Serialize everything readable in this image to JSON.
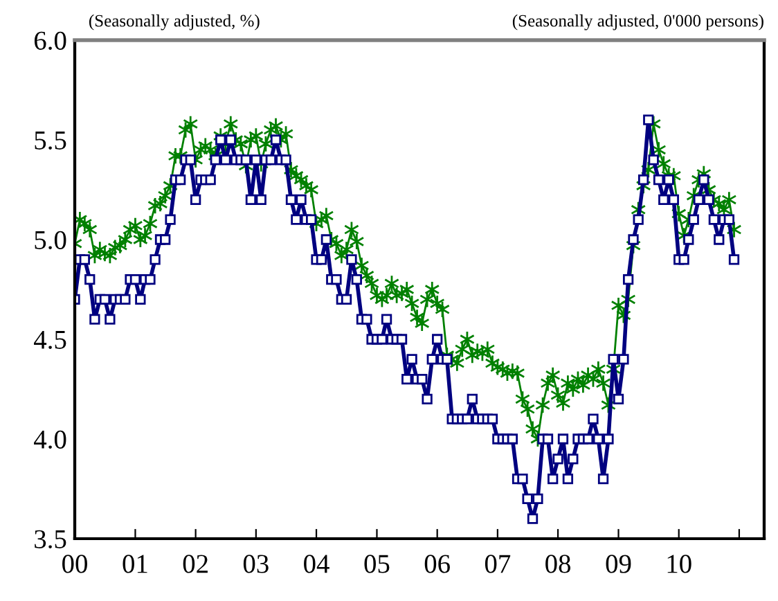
{
  "chart_data": {
    "type": "line",
    "ylabel": "(Seasonally adjusted, %)",
    "y2label": "(Seasonally adjusted, 0'000 persons)",
    "x": [
      "2000-01",
      "2000-02",
      "2000-03",
      "2000-04",
      "2000-05",
      "2000-06",
      "2000-07",
      "2000-08",
      "2000-09",
      "2000-10",
      "2000-11",
      "2000-12",
      "2001-01",
      "2001-02",
      "2001-03",
      "2001-04",
      "2001-05",
      "2001-06",
      "2001-07",
      "2001-08",
      "2001-09",
      "2001-10",
      "2001-11",
      "2001-12",
      "2002-01",
      "2002-02",
      "2002-03",
      "2002-04",
      "2002-05",
      "2002-06",
      "2002-07",
      "2002-08",
      "2002-09",
      "2002-10",
      "2002-11",
      "2002-12",
      "2003-01",
      "2003-02",
      "2003-03",
      "2003-04",
      "2003-05",
      "2003-06",
      "2003-07",
      "2003-08",
      "2003-09",
      "2003-10",
      "2003-11",
      "2003-12",
      "2004-01",
      "2004-02",
      "2004-03",
      "2004-04",
      "2004-05",
      "2004-06",
      "2004-07",
      "2004-08",
      "2004-09",
      "2004-10",
      "2004-11",
      "2004-12",
      "2005-01",
      "2005-02",
      "2005-03",
      "2005-04",
      "2005-05",
      "2005-06",
      "2005-07",
      "2005-08",
      "2005-09",
      "2005-10",
      "2005-11",
      "2005-12",
      "2006-01",
      "2006-02",
      "2006-03",
      "2006-04",
      "2006-05",
      "2006-06",
      "2006-07",
      "2006-08",
      "2006-09",
      "2006-10",
      "2006-11",
      "2006-12",
      "2007-01",
      "2007-02",
      "2007-03",
      "2007-04",
      "2007-05",
      "2007-06",
      "2007-07",
      "2007-08",
      "2007-09",
      "2007-10",
      "2007-11",
      "2007-12",
      "2008-01",
      "2008-02",
      "2008-03",
      "2008-04",
      "2008-05",
      "2008-06",
      "2008-07",
      "2008-08",
      "2008-09",
      "2008-10",
      "2008-11",
      "2008-12",
      "2009-01",
      "2009-02",
      "2009-03",
      "2009-04",
      "2009-05",
      "2009-06",
      "2009-07",
      "2009-08",
      "2009-09",
      "2009-10",
      "2009-11",
      "2009-12",
      "2010-01",
      "2010-02",
      "2010-03",
      "2010-04",
      "2010-05",
      "2010-06",
      "2010-07",
      "2010-08",
      "2010-09",
      "2010-10",
      "2010-11",
      "2010-12"
    ],
    "series": [
      {
        "color": "#008000",
        "marker": "cross",
        "values": [
          4.98,
          5.1,
          5.08,
          5.05,
          4.92,
          4.95,
          4.93,
          4.92,
          4.96,
          4.97,
          5.0,
          5.05,
          5.07,
          5.0,
          5.02,
          5.08,
          5.17,
          5.18,
          5.22,
          5.27,
          5.42,
          5.42,
          5.55,
          5.58,
          5.4,
          5.45,
          5.47,
          5.45,
          5.42,
          5.52,
          5.48,
          5.58,
          5.5,
          5.48,
          5.37,
          5.5,
          5.52,
          5.38,
          5.48,
          5.55,
          5.57,
          5.5,
          5.53,
          5.35,
          5.32,
          5.3,
          5.27,
          5.25,
          5.08,
          5.1,
          5.12,
          5.0,
          4.98,
          4.92,
          4.95,
          5.05,
          4.99,
          4.87,
          4.82,
          4.78,
          4.72,
          4.7,
          4.72,
          4.78,
          4.72,
          4.73,
          4.75,
          4.68,
          4.61,
          4.58,
          4.7,
          4.75,
          4.68,
          4.65,
          4.42,
          4.4,
          4.38,
          4.45,
          4.5,
          4.42,
          4.44,
          4.43,
          4.45,
          4.38,
          4.36,
          4.35,
          4.33,
          4.34,
          4.33,
          4.2,
          4.15,
          4.05,
          4.0,
          4.17,
          4.28,
          4.32,
          4.22,
          4.18,
          4.28,
          4.25,
          4.3,
          4.27,
          4.32,
          4.3,
          4.35,
          4.28,
          4.17,
          4.35,
          4.67,
          4.62,
          4.7,
          4.97,
          5.15,
          5.27,
          5.35,
          5.58,
          5.45,
          5.38,
          5.32,
          5.32,
          5.13,
          5.02,
          5.1,
          5.22,
          5.3,
          5.33,
          5.25,
          5.2,
          5.18,
          5.15,
          5.2,
          5.05
        ]
      },
      {
        "color": "#000080",
        "marker": "square",
        "values": [
          4.7,
          4.9,
          4.9,
          4.8,
          4.6,
          4.7,
          4.7,
          4.6,
          4.7,
          4.7,
          4.7,
          4.8,
          4.8,
          4.7,
          4.8,
          4.8,
          4.9,
          5.0,
          5.0,
          5.1,
          5.3,
          5.3,
          5.4,
          5.4,
          5.2,
          5.3,
          5.3,
          5.3,
          5.4,
          5.5,
          5.4,
          5.5,
          5.4,
          5.4,
          5.4,
          5.2,
          5.4,
          5.2,
          5.4,
          5.4,
          5.5,
          5.4,
          5.4,
          5.2,
          5.1,
          5.2,
          5.1,
          5.1,
          4.9,
          4.9,
          5.0,
          4.8,
          4.8,
          4.7,
          4.7,
          4.9,
          4.8,
          4.6,
          4.6,
          4.5,
          4.5,
          4.5,
          4.6,
          4.5,
          4.5,
          4.5,
          4.3,
          4.4,
          4.3,
          4.3,
          4.2,
          4.4,
          4.5,
          4.4,
          4.4,
          4.1,
          4.1,
          4.1,
          4.1,
          4.2,
          4.1,
          4.1,
          4.1,
          4.1,
          4.0,
          4.0,
          4.0,
          4.0,
          3.8,
          3.8,
          3.7,
          3.6,
          3.7,
          4.0,
          4.0,
          3.8,
          3.9,
          4.0,
          3.8,
          3.9,
          4.0,
          4.0,
          4.0,
          4.1,
          4.0,
          3.8,
          4.0,
          4.4,
          4.2,
          4.4,
          4.8,
          5.0,
          5.1,
          5.3,
          5.6,
          5.4,
          5.3,
          5.2,
          5.3,
          5.2,
          4.9,
          4.9,
          5.0,
          5.1,
          5.2,
          5.3,
          5.2,
          5.1,
          5.0,
          5.1,
          5.1,
          4.9
        ]
      }
    ],
    "xlim": [
      "2000-01",
      "2011-06"
    ],
    "xticks": [
      {
        "value": "2000-01",
        "label": "00"
      },
      {
        "value": "2001-01",
        "label": "01"
      },
      {
        "value": "2002-01",
        "label": "02"
      },
      {
        "value": "2003-01",
        "label": "03"
      },
      {
        "value": "2004-01",
        "label": "04"
      },
      {
        "value": "2005-01",
        "label": "05"
      },
      {
        "value": "2006-01",
        "label": "06"
      },
      {
        "value": "2007-01",
        "label": "07"
      },
      {
        "value": "2008-01",
        "label": "08"
      },
      {
        "value": "2009-01",
        "label": "09"
      },
      {
        "value": "2010-01",
        "label": "10"
      },
      {
        "value": "2011-01",
        "label": null
      }
    ],
    "ylim": [
      3.5,
      6.0
    ],
    "yticks": [
      {
        "value": 3.5,
        "label": "3.5"
      },
      {
        "value": 4.0,
        "label": "4.0"
      },
      {
        "value": 4.5,
        "label": "4.5"
      },
      {
        "value": 5.0,
        "label": "5.0"
      },
      {
        "value": 5.5,
        "label": "5.5"
      },
      {
        "value": 6.0,
        "label": "6.0"
      }
    ],
    "tick_labels": [
      "x",
      "y"
    ],
    "grid": false,
    "line_style": "solid"
  }
}
